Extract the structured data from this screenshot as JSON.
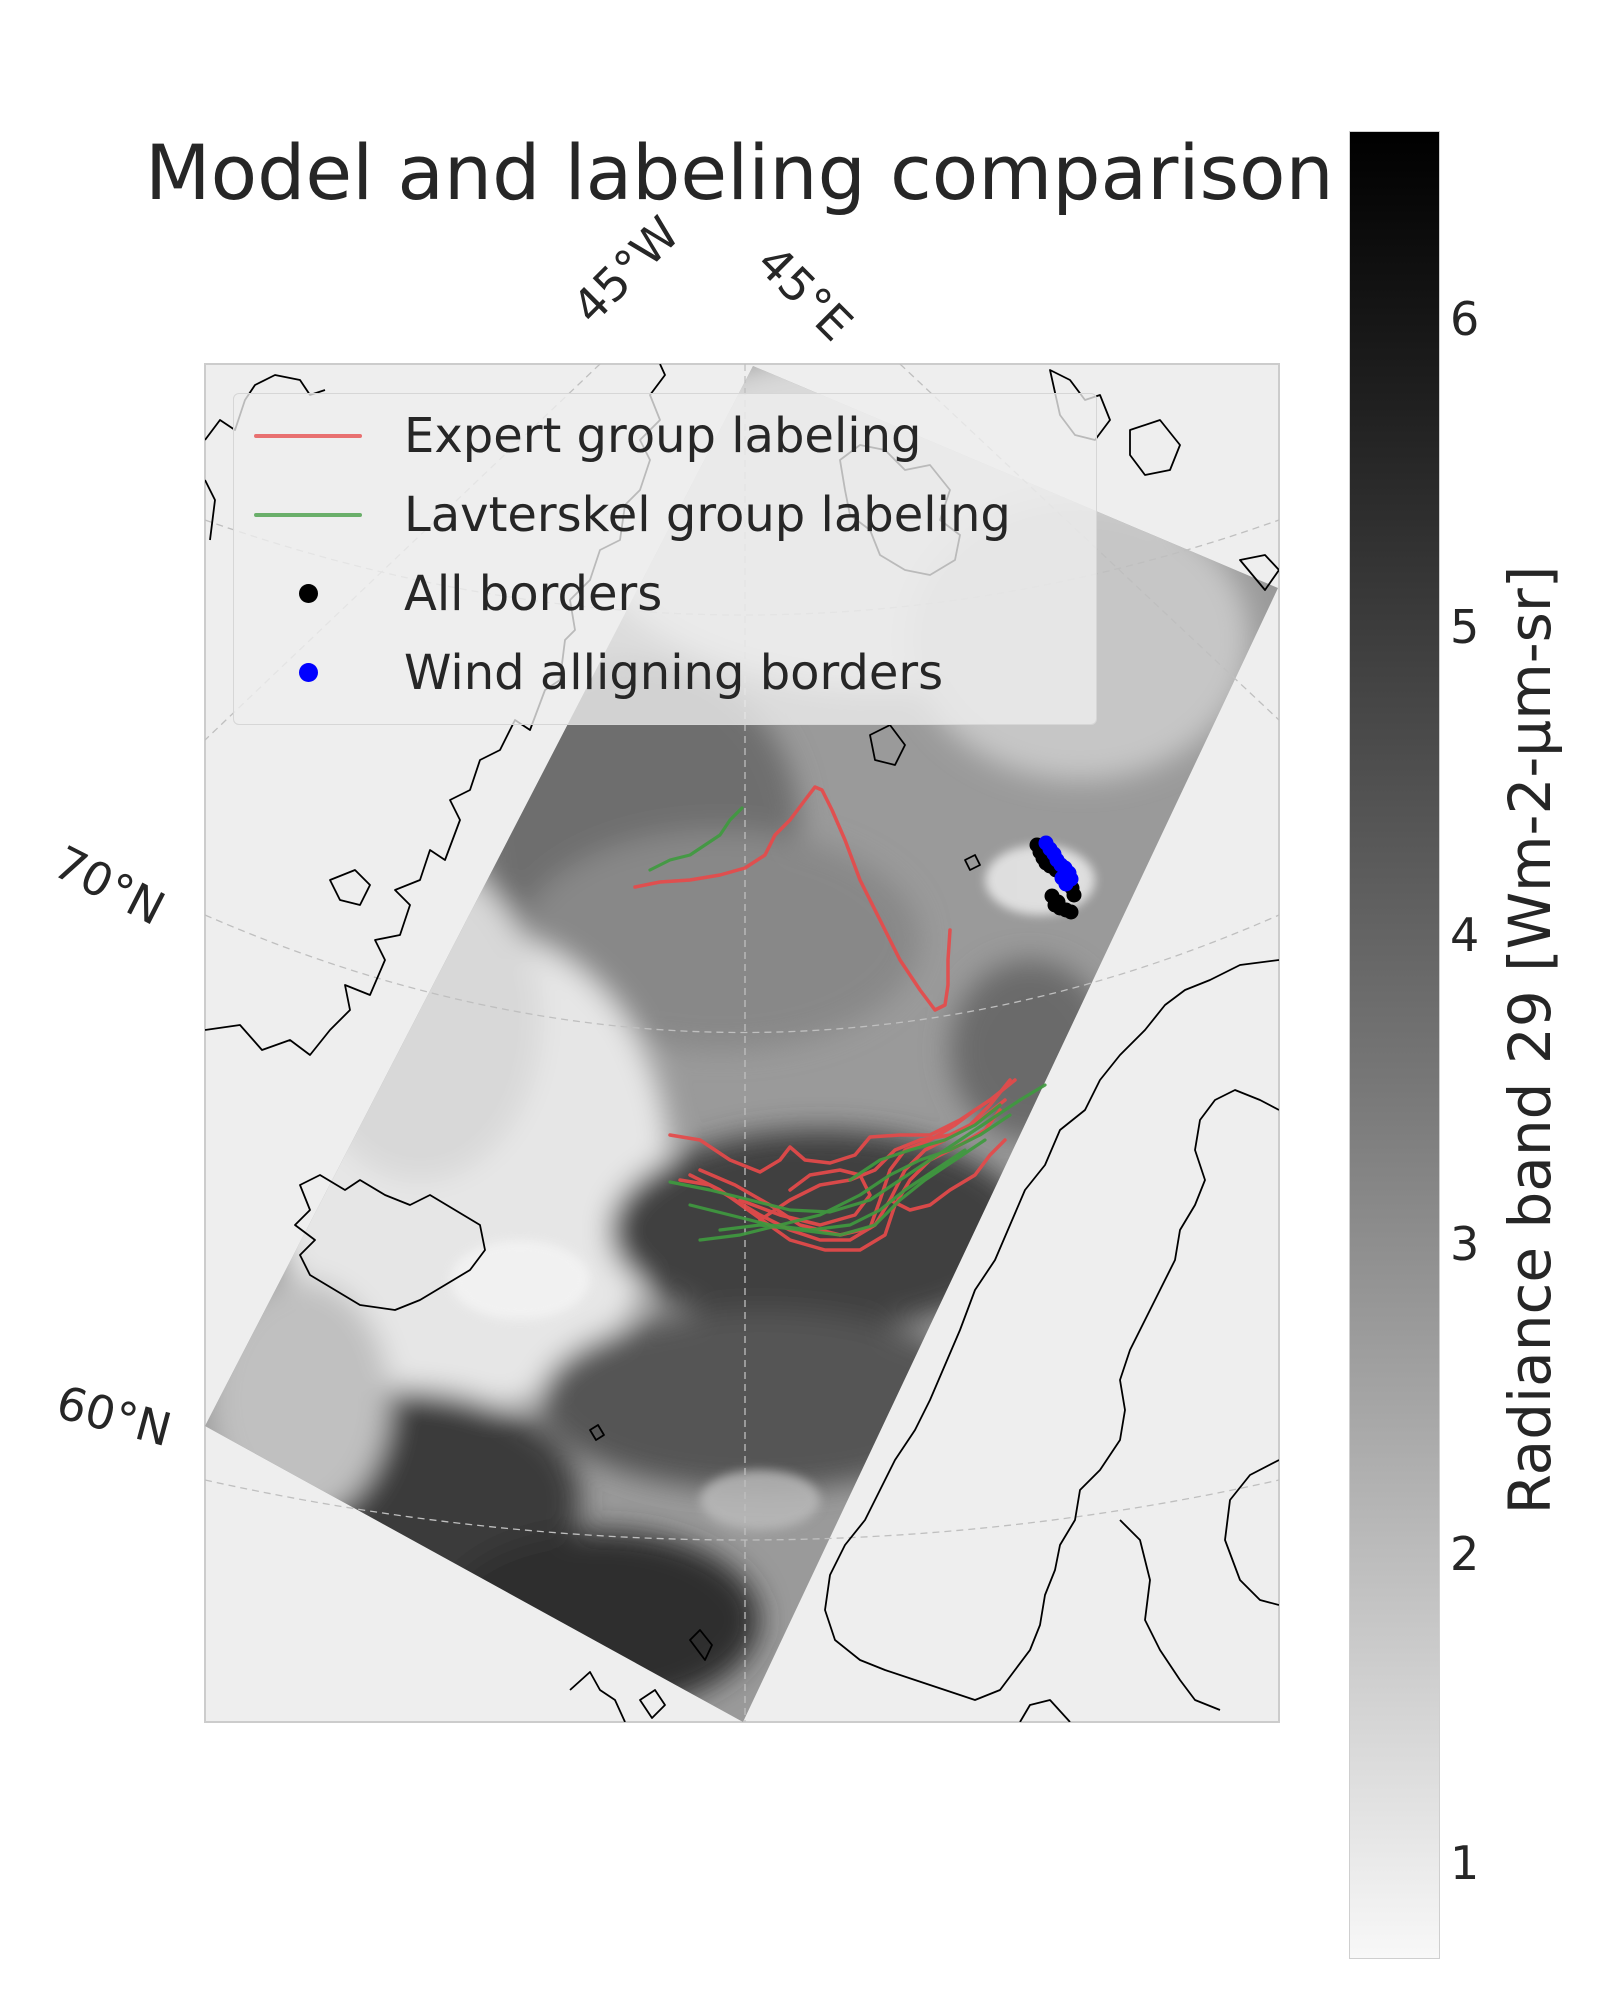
{
  "title": "Model and labeling comparison",
  "longitude_labels": [
    "45°W",
    "45°E"
  ],
  "latitude_labels": [
    "70°N",
    "60°N"
  ],
  "legend": {
    "items": [
      {
        "label": "Expert group labeling",
        "kind": "line",
        "color": "#e64a4a"
      },
      {
        "label": "Lavterskel group labeling",
        "kind": "line",
        "color": "#3f9a3f"
      },
      {
        "label": "All borders",
        "kind": "dot",
        "color": "#000000"
      },
      {
        "label": "Wind alligning borders",
        "kind": "dot",
        "color": "#0000ff"
      }
    ]
  },
  "colorbar": {
    "label": "Radiance band 29 [Wm-2-µm-sr]",
    "ticks": [
      "6",
      "5",
      "4",
      "3",
      "2",
      "1"
    ],
    "range": [
      0.7,
      6.6
    ],
    "colormap": "greys (white = low, black = high)"
  },
  "colors": {
    "ocean_background": "#eeeeee",
    "coastline": "#000000",
    "expert": "#e64a4a",
    "lavterskel": "#3f9a3f",
    "all_borders": "#000000",
    "wind_borders": "#0000ff"
  }
}
